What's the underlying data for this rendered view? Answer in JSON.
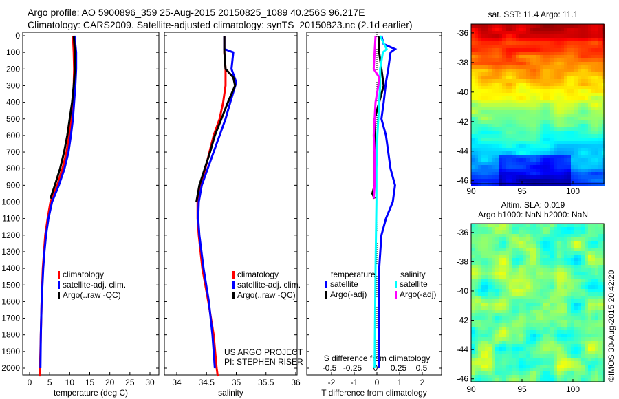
{
  "header": {
    "line1": "Argo profile: AO 5900896_359 25-Aug-2015 20150825_1089 40.256S 96.217E",
    "line2": "Climatology: CARS2009. Satellite-adjusted climatology: synTS_20150823.nc (2.1d earlier)"
  },
  "credit": "©IMOS 30-Aug-2015 20:42:20",
  "colors": {
    "climatology": "#ff0000",
    "satellite": "#0000ff",
    "argo": "#000000",
    "s_satellite": "#00ffff",
    "s_argo": "#ff00ff"
  },
  "chart_data": [
    {
      "type": "line",
      "name": "temperature",
      "xlabel": "temperature (deg C)",
      "xlim": [
        -2,
        32
      ],
      "ylim": [
        2050,
        0
      ],
      "xticks": [
        "0",
        "5",
        "10",
        "15",
        "20",
        "25",
        "30"
      ],
      "yticks": [
        "0",
        "100",
        "200",
        "300",
        "400",
        "500",
        "600",
        "700",
        "800",
        "900",
        "1000",
        "1100",
        "1200",
        "1300",
        "1400",
        "1500",
        "1600",
        "1700",
        "1800",
        "1900",
        "2000"
      ],
      "legend": [
        "climatology",
        "satellite-adj. clim.",
        "Argo(..raw -QC)"
      ],
      "series": [
        {
          "name": "climatology",
          "color": "#ff0000",
          "depth": [
            0,
            100,
            200,
            300,
            400,
            500,
            600,
            700,
            800,
            900,
            1000,
            1100,
            1200,
            1300,
            1400,
            1600,
            1800,
            2000,
            2050
          ],
          "values": [
            10.8,
            11.0,
            11.1,
            11.0,
            10.8,
            10.4,
            9.9,
            9.2,
            8.2,
            6.9,
            5.2,
            4.5,
            3.9,
            3.6,
            3.3,
            3.0,
            2.8,
            2.6,
            2.6
          ]
        },
        {
          "name": "satellite-adj. clim.",
          "color": "#0000ff",
          "depth": [
            0,
            100,
            200,
            300,
            400,
            500,
            600,
            700,
            800,
            900,
            1000,
            1100,
            1200,
            1300,
            1400,
            1600,
            1800,
            2000
          ],
          "values": [
            11.2,
            11.6,
            11.6,
            11.4,
            11.1,
            10.8,
            10.3,
            9.7,
            8.7,
            7.3,
            5.6,
            4.7,
            4.1,
            3.7,
            3.4,
            3.0,
            2.8,
            2.7
          ]
        },
        {
          "name": "Argo(..raw -QC)",
          "color": "#000000",
          "depth": [
            0,
            100,
            200,
            300,
            400,
            500,
            600,
            700,
            800,
            900,
            980
          ],
          "values": [
            11.0,
            11.3,
            11.3,
            11.0,
            10.6,
            10.0,
            9.4,
            8.6,
            7.6,
            6.3,
            5.2
          ]
        }
      ]
    },
    {
      "type": "line",
      "name": "salinity",
      "xlabel": "salinity",
      "xlim": [
        33.82,
        36.1
      ],
      "ylim": [
        2050,
        0
      ],
      "xticks": [
        "34",
        "34.5",
        "35",
        "35.5",
        "36"
      ],
      "legend": [
        "climatology",
        "satellite-adj. clim.",
        "Argo(..raw -QC)"
      ],
      "annotation": [
        "US ARGO PROJECT",
        "PI: STEPHEN RISER"
      ],
      "series": [
        {
          "name": "climatology",
          "color": "#ff0000",
          "depth": [
            0,
            100,
            200,
            300,
            400,
            500,
            600,
            700,
            800,
            900,
            1000,
            1100,
            1200,
            1400,
            1600,
            1800,
            2000,
            2050
          ],
          "values": [
            34.8,
            34.8,
            34.82,
            34.82,
            34.78,
            34.72,
            34.62,
            34.55,
            34.48,
            34.4,
            34.35,
            34.35,
            34.37,
            34.43,
            34.53,
            34.62,
            34.67,
            34.69
          ]
        },
        {
          "name": "satellite-adj. clim.",
          "color": "#0000ff",
          "depth": [
            0,
            80,
            100,
            200,
            280,
            400,
            500,
            600,
            700,
            800,
            900,
            1000,
            1100,
            1200,
            1400,
            1600,
            1800,
            2000
          ],
          "values": [
            34.8,
            34.8,
            34.95,
            34.92,
            35.0,
            34.9,
            34.82,
            34.72,
            34.62,
            34.52,
            34.42,
            34.37,
            34.36,
            34.38,
            34.45,
            34.54,
            34.6,
            34.64
          ]
        },
        {
          "name": "Argo(..raw -QC)",
          "color": "#000000",
          "depth": [
            0,
            100,
            200,
            250,
            300,
            400,
            500,
            600,
            700,
            800,
            900,
            1000
          ],
          "values": [
            34.8,
            34.8,
            34.82,
            34.95,
            34.98,
            34.86,
            34.75,
            34.64,
            34.56,
            34.47,
            34.38,
            34.33
          ]
        }
      ]
    },
    {
      "type": "line",
      "name": "difference",
      "xlabel": "T difference from climatology",
      "x2label": "S difference from climatology",
      "xlim": [
        -3.1,
        2.85
      ],
      "ylim": [
        2050,
        0
      ],
      "xticks": [
        "-2",
        "-1",
        "0",
        "1",
        "2"
      ],
      "x2ticks": [
        "-0.5",
        "-0.25",
        "0",
        "0.25",
        "0.5"
      ],
      "legend_headers": [
        "temperature",
        "salinity"
      ],
      "legend": [
        "satellite",
        "Argo(-adj)",
        "satellite",
        "Argo(-adj)"
      ],
      "series": [
        {
          "name": "T satellite",
          "color": "#0000ff",
          "depth": [
            0,
            50,
            80,
            100,
            200,
            280,
            400,
            500,
            600,
            700,
            800,
            900,
            1000,
            1100,
            1200,
            1400,
            2000
          ],
          "values": [
            0.2,
            0.3,
            0.8,
            0.6,
            0.5,
            0.4,
            0.3,
            0.2,
            0.4,
            0.5,
            0.6,
            0.8,
            0.7,
            0.4,
            0.2,
            0.1,
            0.1
          ]
        },
        {
          "name": "T Argo(-adj)",
          "color": "#000000",
          "depth": [
            0,
            100,
            200,
            300,
            400,
            500,
            600,
            700,
            800,
            900,
            950,
            980
          ],
          "values": [
            0.1,
            0.1,
            0.2,
            0.3,
            0.1,
            -0.1,
            -0.1,
            -0.1,
            -0.1,
            -0.1,
            -0.2,
            -0.1
          ]
        },
        {
          "name": "S satellite",
          "color": "#00ffff",
          "depth": [
            0,
            80,
            100,
            200,
            300,
            500,
            600,
            800,
            1000,
            1400,
            2000
          ],
          "values": [
            0.05,
            0.12,
            0.08,
            0.05,
            0.05,
            0.03,
            0.02,
            0.01,
            0.01,
            0.0,
            -0.01
          ]
        },
        {
          "name": "S Argo(-adj)",
          "color": "#ff00ff",
          "depth": [
            0,
            100,
            200,
            250,
            300,
            400,
            500,
            600,
            700,
            800,
            900,
            980
          ],
          "values": [
            0.0,
            -0.01,
            -0.02,
            0.04,
            0.03,
            0.0,
            -0.01,
            -0.02,
            -0.01,
            -0.01,
            -0.01,
            -0.02
          ]
        }
      ]
    },
    {
      "type": "heatmap",
      "name": "sst-map",
      "title": "sat. SST: 11.4  Argo: 11.1",
      "xticks": [
        "90",
        "95",
        "100"
      ],
      "yticks": [
        "-36",
        "-38",
        "-40",
        "-42",
        "-44",
        "-46"
      ]
    },
    {
      "type": "heatmap",
      "name": "sla-map",
      "title": [
        "Altim. SLA: 0.019",
        "Argo h1000: NaN h2000: NaN"
      ],
      "xticks": [
        "90",
        "95",
        "100"
      ],
      "yticks": [
        "-36",
        "-38",
        "-40",
        "-42",
        "-44",
        "-46"
      ]
    }
  ]
}
